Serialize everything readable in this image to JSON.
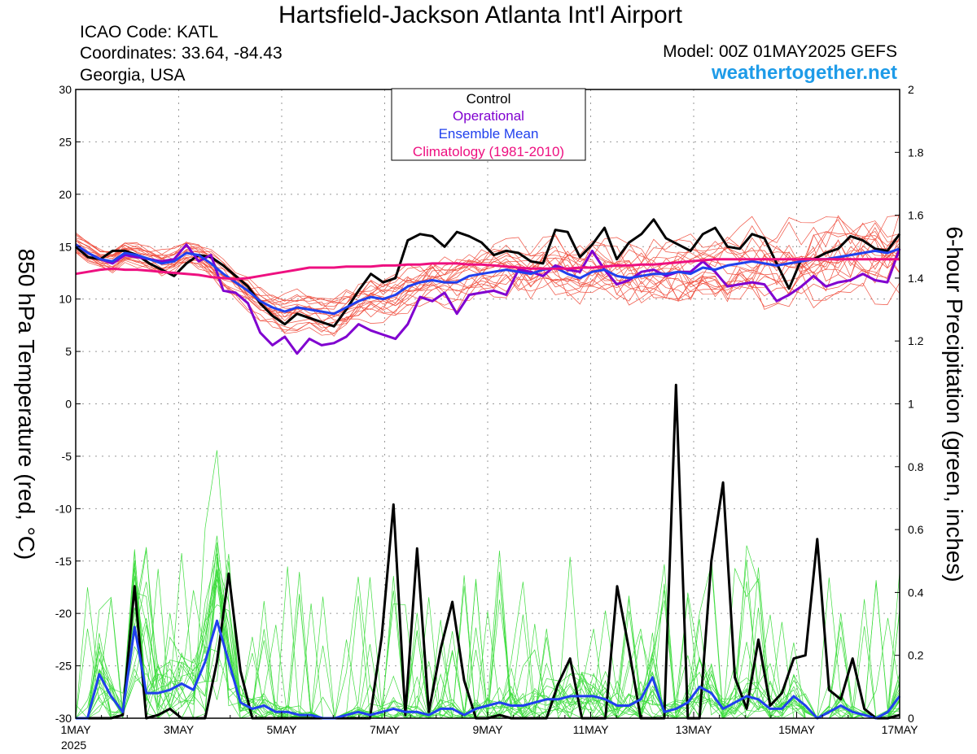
{
  "header": {
    "title": "Hartsfield-Jackson Atlanta Int'l Airport",
    "icao": "ICAO Code: KATL",
    "coordinates": "Coordinates: 33.64, -84.43",
    "region": "Georgia, USA",
    "model": "Model: 00Z 01MAY2025 GEFS",
    "website": "weathertogether.net"
  },
  "colors": {
    "control": "#000000",
    "operational": "#8000d0",
    "ensemble_mean": "#2040ee",
    "climatology": "#ee1080",
    "members_temp": "#f05040",
    "members_precip": "#40dd40"
  },
  "chart_data": {
    "type": "line",
    "ylabel": "850 hPa Temperature (red, °C)",
    "y2label": "6-hour Precipitation (green, inches)",
    "ylim": [
      -30,
      30
    ],
    "y2lim": [
      0,
      2
    ],
    "y_ticks": [
      "30",
      "25",
      "20",
      "15",
      "10",
      "5",
      "0",
      "-5",
      "-10",
      "-15",
      "-20",
      "-25",
      "-30"
    ],
    "y2_ticks": [
      "2",
      "1.8",
      "1.6",
      "1.4",
      "1.2",
      "1",
      "0.8",
      "0.6",
      "0.4",
      "0.2",
      "0"
    ],
    "x_ticks": [
      "1MAY",
      "3MAY",
      "5MAY",
      "7MAY",
      "9MAY",
      "11MAY",
      "13MAY",
      "15MAY",
      "17MAY"
    ],
    "x_tick_year": "2025",
    "x_range_days": [
      0,
      16
    ],
    "grid": true,
    "legend": {
      "placement": "top-center",
      "entries": [
        "Control",
        "Operational",
        "Ensemble Mean",
        "Climatology (1981-2010)"
      ]
    },
    "temperature_series": [
      {
        "name": "Control",
        "color_key": "control",
        "values": [
          15,
          14,
          13.8,
          14.6,
          14.6,
          14.2,
          13.4,
          12.8,
          12.2,
          13.4,
          14.2,
          14,
          13.2,
          12.2,
          11.2,
          9.6,
          8.4,
          7.6,
          8.6,
          8.2,
          7.8,
          7.4,
          9,
          10.8,
          12.4,
          11.6,
          12,
          15.6,
          16.2,
          16,
          15,
          16.4,
          16,
          15.4,
          14.2,
          14.6,
          14.4,
          13.6,
          13.4,
          16.6,
          16.4,
          14,
          15.2,
          16.8,
          13.8,
          15.4,
          16.2,
          17.6,
          15.8,
          15.2,
          14.6,
          16.2,
          16.8,
          15,
          14.8,
          16.2,
          15.8,
          13.4,
          11,
          13.8,
          13.8,
          14.4,
          14.8,
          16,
          15.6,
          14.8,
          14.6,
          16.2
        ]
      },
      {
        "name": "Operational",
        "color_key": "operational",
        "values": [
          15.2,
          14.4,
          13.8,
          13.4,
          14.2,
          14,
          13.8,
          13.6,
          13.8,
          15.2,
          13.6,
          14.2,
          10.8,
          10.6,
          9.6,
          6.8,
          5.6,
          6.4,
          4.8,
          6.2,
          5.6,
          5.8,
          6.4,
          7.6,
          7,
          6.6,
          6.2,
          7.6,
          10.2,
          9.8,
          10.6,
          8.6,
          10.4,
          10.6,
          10.8,
          10.4,
          12.8,
          12.6,
          12.2,
          13.2,
          12.8,
          12.6,
          14.6,
          12.8,
          11.4,
          11.8,
          12.6,
          12.8,
          12.2,
          12.6,
          12.6,
          13.6,
          12.6,
          11.2,
          11.4,
          11.6,
          11.4,
          9.8,
          10.4,
          11.2,
          12.2,
          11.2,
          11.6,
          11.8,
          12.4,
          11.8,
          11.6,
          14.8
        ]
      },
      {
        "name": "Ensemble Mean",
        "color_key": "ensemble_mean",
        "values": [
          15.2,
          14.4,
          13.8,
          13.6,
          14.4,
          14.2,
          13.8,
          13.4,
          13.6,
          14.4,
          14.2,
          13.4,
          12.4,
          11.6,
          10.8,
          9.8,
          9.2,
          8.8,
          9.2,
          9,
          8.8,
          8.6,
          9.2,
          9.8,
          10.2,
          10,
          10.4,
          11.2,
          11.6,
          11.8,
          11.6,
          11.6,
          12.2,
          12.4,
          12.6,
          12.8,
          12.6,
          12.4,
          12.8,
          13,
          12.4,
          12,
          12.6,
          12.8,
          12.2,
          12,
          12.2,
          12.4,
          12.4,
          12.6,
          12.4,
          13,
          12.8,
          13.2,
          13.4,
          13.6,
          13.4,
          13.2,
          13.4,
          13.6,
          13.8,
          13.8,
          14,
          14.2,
          14.4,
          14.6,
          14.4,
          14.8
        ]
      },
      {
        "name": "Climatology (1981-2010)",
        "color_key": "climatology",
        "values": [
          12.4,
          12.6,
          12.8,
          12.9,
          12.8,
          12.8,
          12.7,
          12.6,
          12.5,
          12.4,
          12.3,
          12.1,
          12,
          11.9,
          12,
          12.2,
          12.4,
          12.6,
          12.8,
          13,
          13,
          13,
          13.1,
          13.1,
          13.1,
          13.2,
          13.2,
          13.3,
          13.3,
          13.4,
          13.4,
          13.4,
          13.3,
          13.3,
          13.2,
          13.1,
          13,
          12.9,
          12.9,
          12.9,
          12.9,
          13,
          13,
          13.1,
          13.2,
          13.2,
          13.3,
          13.3,
          13.4,
          13.5,
          13.6,
          13.7,
          13.8,
          13.8,
          13.8,
          13.8,
          13.8,
          13.8,
          13.8,
          13.8,
          13.8,
          13.8,
          13.8,
          13.8,
          13.8,
          13.8,
          13.8,
          13.8
        ]
      }
    ],
    "precip_series": [
      {
        "name": "Control",
        "color_key": "control",
        "values": [
          0,
          0,
          0,
          0,
          0.01,
          0.42,
          0,
          0.01,
          0.03,
          0,
          0,
          0,
          0.18,
          0.46,
          0.15,
          0,
          0,
          0,
          0,
          0,
          0,
          0,
          0,
          0,
          0,
          0,
          0.26,
          0.68,
          0.01,
          0.54,
          0.02,
          0.22,
          0.37,
          0.12,
          0,
          0,
          0.01,
          0,
          0,
          0,
          0,
          0.11,
          0.19,
          0,
          0,
          0,
          0.42,
          0.22,
          0,
          0,
          0,
          1.06,
          0,
          0,
          0.5,
          0.75,
          0.13,
          0.03,
          0.25,
          0.04,
          0.08,
          0.19,
          0.2,
          0.57,
          0.09,
          0.06,
          0.19,
          0.03,
          0,
          0,
          0.01
        ]
      },
      {
        "name": "Ensemble Mean",
        "color_key": "ensemble_mean",
        "values": [
          0,
          0,
          0.14,
          0.07,
          0.02,
          0.29,
          0.08,
          0.08,
          0.09,
          0.11,
          0.09,
          0.18,
          0.31,
          0.18,
          0.05,
          0.03,
          0.04,
          0.02,
          0.02,
          0.01,
          0.01,
          0,
          0,
          0.01,
          0.02,
          0.01,
          0.02,
          0.03,
          0.02,
          0.02,
          0.01,
          0.03,
          0.03,
          0.01,
          0.03,
          0.04,
          0.05,
          0.04,
          0.04,
          0.05,
          0.06,
          0.06,
          0.07,
          0.07,
          0.07,
          0.06,
          0.04,
          0.04,
          0.06,
          0.13,
          0.02,
          0.03,
          0.05,
          0.1,
          0.08,
          0.03,
          0.05,
          0.07,
          0.06,
          0.03,
          0.03,
          0.07,
          0.04,
          0,
          0.02,
          0.04,
          0.02,
          0.01,
          0,
          0.02,
          0.07
        ]
      }
    ]
  }
}
